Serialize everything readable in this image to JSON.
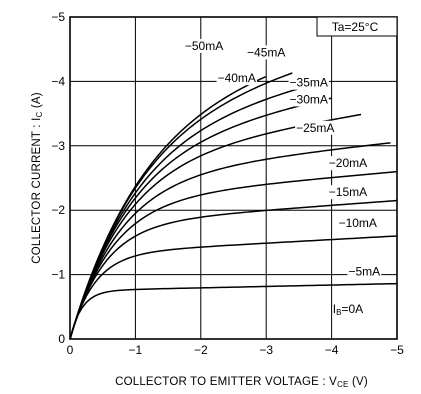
{
  "chart_data": {
    "type": "line",
    "xlabel": "COLLECTOR TO EMITTER VOLTAGE : V",
    "xlabel_sub": "CE",
    "xlabel_unit": " (V)",
    "ylabel": "COLLECTOR CURRENT : I",
    "ylabel_sub": "C",
    "ylabel_unit": " (A)",
    "xlim": [
      0,
      -5
    ],
    "ylim": [
      0,
      -5
    ],
    "x_ticks": [
      0,
      -1,
      -2,
      -3,
      -4,
      -5
    ],
    "y_ticks": [
      0,
      -1,
      -2,
      -3,
      -4,
      -5
    ],
    "x_tick_labels": [
      "0",
      "−1",
      "−2",
      "−3",
      "−4",
      "−5"
    ],
    "y_tick_labels": [
      "0",
      "−1",
      "−2",
      "−3",
      "−4",
      "−5"
    ],
    "grid": true,
    "annotation": "Ta=25°C",
    "zero_label": "I",
    "zero_label_sub": "B",
    "zero_label_value": "=0A",
    "series": [
      {
        "name": "−5mA",
        "saturation": -0.75,
        "x_end": -5,
        "y_end": -0.86,
        "label_x": -4.5,
        "label_y": -1.05
      },
      {
        "name": "−10mA",
        "saturation": -1.32,
        "x_end": -5,
        "y_end": -1.6,
        "label_x": -4.4,
        "label_y": -1.8
      },
      {
        "name": "−15mA",
        "saturation": -1.78,
        "x_end": -5,
        "y_end": -2.15,
        "label_x": -4.25,
        "label_y": -2.28
      },
      {
        "name": "−20mA",
        "saturation": -2.15,
        "x_end": -5,
        "y_end": -2.6,
        "label_x": -4.25,
        "label_y": -2.73
      },
      {
        "name": "−25mA",
        "saturation": -2.5,
        "x_end": -4.9,
        "y_end": -3.05,
        "label_x": -3.75,
        "label_y": -3.28
      },
      {
        "name": "−30mA",
        "saturation": -2.78,
        "x_end": -4.45,
        "y_end": -3.5,
        "label_x": -3.65,
        "label_y": -3.72
      },
      {
        "name": "−35mA",
        "saturation": -3.02,
        "x_end": -4.0,
        "y_end": -3.78,
        "label_x": -3.65,
        "label_y": -3.98
      },
      {
        "name": "−40mA",
        "saturation": -3.28,
        "x_end": -3.65,
        "y_end": -4.02,
        "label_x": -2.55,
        "label_y": -4.05
      },
      {
        "name": "−45mA",
        "saturation": -3.5,
        "x_end": -3.4,
        "y_end": -4.28,
        "label_x": -3.0,
        "label_y": -4.45
      },
      {
        "name": "−50mA",
        "saturation": -3.72,
        "x_end": -3.0,
        "y_end": -4.35,
        "label_x": -2.05,
        "label_y": -4.55
      }
    ]
  }
}
